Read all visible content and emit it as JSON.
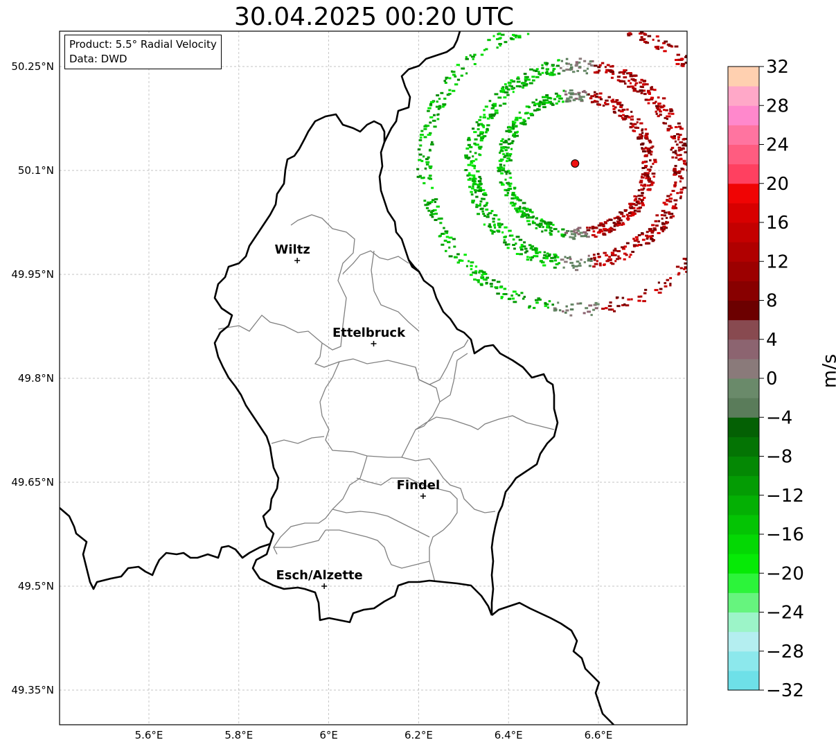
{
  "title": "30.04.2025 00:20 UTC",
  "info": {
    "product": "Product: 5.5° Radial Velocity",
    "data_source": "Data: DWD"
  },
  "map": {
    "lon_range": [
      5.4,
      6.8
    ],
    "lat_range": [
      49.3,
      50.3
    ],
    "lon_ticks": [
      {
        "value": 5.6,
        "label": "5.6°E"
      },
      {
        "value": 5.8,
        "label": "5.8°E"
      },
      {
        "value": 6.0,
        "label": "6°E"
      },
      {
        "value": 6.2,
        "label": "6.2°E"
      },
      {
        "value": 6.4,
        "label": "6.4°E"
      },
      {
        "value": 6.6,
        "label": "6.6°E"
      }
    ],
    "lat_ticks": [
      {
        "value": 50.25,
        "label": "50.25°N"
      },
      {
        "value": 50.1,
        "label": "50.1°N"
      },
      {
        "value": 49.95,
        "label": "49.95°N"
      },
      {
        "value": 49.8,
        "label": "49.8°N"
      },
      {
        "value": 49.65,
        "label": "49.65°N"
      },
      {
        "value": 49.5,
        "label": "49.5°N"
      },
      {
        "value": 49.35,
        "label": "49.35°N"
      }
    ],
    "cities": [
      {
        "name": "Wiltz",
        "lon": 5.93,
        "lat": 49.97
      },
      {
        "name": "Ettelbruck",
        "lon": 6.1,
        "lat": 49.85
      },
      {
        "name": "Findel",
        "lon": 6.21,
        "lat": 49.63
      },
      {
        "name": "Esch/Alzette",
        "lon": 5.99,
        "lat": 49.5
      }
    ],
    "radar_site": {
      "lon": 6.548,
      "lat": 50.11,
      "color": "#ee1111"
    },
    "grid": true
  },
  "colorbar": {
    "unit": "m/s",
    "min": -32,
    "max": 32,
    "ticks": [
      {
        "value": 32,
        "label": "32"
      },
      {
        "value": 28,
        "label": "28"
      },
      {
        "value": 24,
        "label": "24"
      },
      {
        "value": 20,
        "label": "20"
      },
      {
        "value": 16,
        "label": "16"
      },
      {
        "value": 12,
        "label": "12"
      },
      {
        "value": 8,
        "label": "8"
      },
      {
        "value": 4,
        "label": "4"
      },
      {
        "value": 0,
        "label": "0"
      },
      {
        "value": -4,
        "label": "−4"
      },
      {
        "value": -8,
        "label": "−8"
      },
      {
        "value": -12,
        "label": "−12"
      },
      {
        "value": -16,
        "label": "−16"
      },
      {
        "value": -20,
        "label": "−20"
      },
      {
        "value": -24,
        "label": "−24"
      },
      {
        "value": -28,
        "label": "−28"
      },
      {
        "value": -32,
        "label": "−32"
      }
    ],
    "colors": [
      "#6ee0e8",
      "#8ce8ec",
      "#b4eef0",
      "#9cf4c8",
      "#66f47e",
      "#2cf43a",
      "#06ea06",
      "#04d804",
      "#04c404",
      "#04b004",
      "#049c04",
      "#048804",
      "#047404",
      "#046004",
      "#5a7c5a",
      "#6a8a6a",
      "#8a7a7a",
      "#8c6470",
      "#884a50",
      "#6c0000",
      "#880000",
      "#9c0000",
      "#b00000",
      "#c40000",
      "#d80000",
      "#f00404",
      "#ff4060",
      "#ff5c80",
      "#ff74a0",
      "#ff88cc",
      "#ffa8c8",
      "#ffd0b0"
    ]
  }
}
